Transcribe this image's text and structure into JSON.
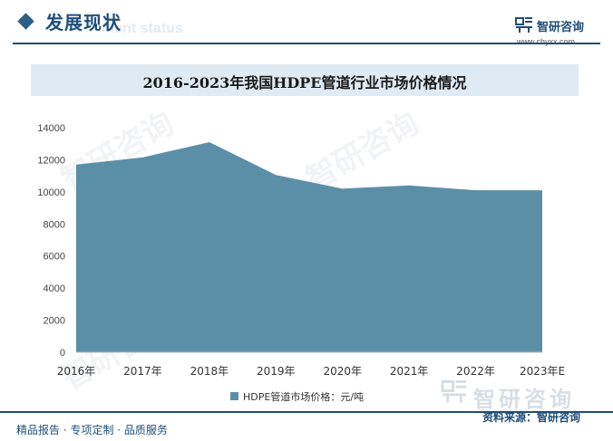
{
  "section": {
    "title": "发展现状",
    "subtitle": "ment status"
  },
  "brand": {
    "name": "智研咨询",
    "url": "www.chyxx.com",
    "watermark_name": "智研咨询"
  },
  "colors": {
    "primary": "#1f4e79",
    "area": "#5b8fa8",
    "title_bg": "#deeaf4"
  },
  "chart_data": {
    "type": "area",
    "title": "2016-2023年我国HDPE管道行业市场价格情况",
    "categories": [
      "2016年",
      "2017年",
      "2018年",
      "2019年",
      "2020年",
      "2021年",
      "2022年",
      "2023年E"
    ],
    "series": [
      {
        "name": "HDPE管道市场价格：元/吨",
        "values": [
          11700,
          12150,
          13100,
          11050,
          10200,
          10400,
          10100,
          10100
        ]
      }
    ],
    "ylim": [
      0,
      14000
    ],
    "yticks": [
      0,
      2000,
      4000,
      6000,
      8000,
      10000,
      12000,
      14000
    ],
    "grid": false,
    "legend": "bottom"
  },
  "footer": {
    "left": "精品报告 · 专项定制 · 品质服务",
    "source": "资料来源：智研咨询"
  }
}
